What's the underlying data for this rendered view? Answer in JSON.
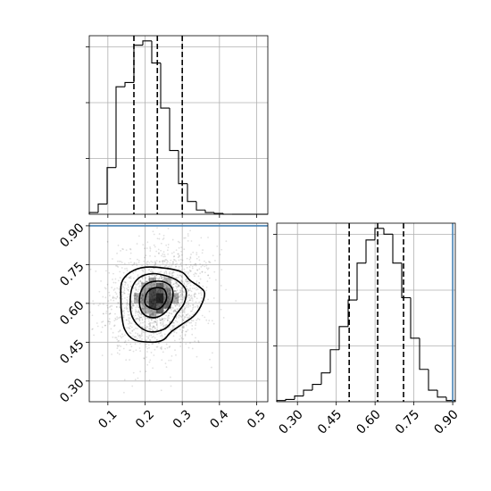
{
  "chart_data": [
    {
      "type": "histogram",
      "panel": "marginal-x",
      "xlim": [
        0.05,
        0.53
      ],
      "xticks": [
        "0.1",
        "0.2",
        "0.3",
        "0.4",
        "0.5"
      ],
      "xtick_values": [
        0.1,
        0.2,
        0.3,
        0.4,
        0.5
      ],
      "bin_edges": [
        0.05,
        0.074,
        0.098,
        0.122,
        0.146,
        0.17,
        0.194,
        0.218,
        0.242,
        0.266,
        0.29,
        0.314,
        0.338,
        0.362,
        0.386,
        0.41,
        0.434,
        0.458,
        0.482,
        0.506,
        0.53
      ],
      "counts": [
        2,
        12,
        55,
        150,
        155,
        199,
        204,
        178,
        125,
        75,
        36,
        15,
        5,
        2,
        1,
        0,
        0,
        0,
        0,
        0
      ],
      "quantiles": [
        0.17,
        0.233,
        0.3
      ],
      "truth": null
    },
    {
      "type": "histogram",
      "panel": "marginal-y",
      "xlim": [
        0.22,
        0.91
      ],
      "xticks": [
        "0.30",
        "0.45",
        "0.60",
        "0.75",
        "0.90"
      ],
      "xtick_values": [
        0.3,
        0.45,
        0.6,
        0.75,
        0.9
      ],
      "bin_edges": [
        0.22,
        0.2545,
        0.289,
        0.3235,
        0.358,
        0.3925,
        0.427,
        0.4615,
        0.496,
        0.5305,
        0.565,
        0.5995,
        0.634,
        0.6685,
        0.703,
        0.7375,
        0.772,
        0.8065,
        0.841,
        0.8755,
        0.91
      ],
      "counts": [
        1,
        2,
        5,
        10,
        15,
        25,
        45,
        65,
        88,
        120,
        140,
        150,
        145,
        120,
        90,
        55,
        28,
        10,
        4,
        1
      ],
      "quantiles": [
        0.5,
        0.61,
        0.71
      ],
      "truth": 0.9
    },
    {
      "type": "scatter",
      "panel": "joint",
      "xlim": [
        0.05,
        0.53
      ],
      "ylim": [
        0.22,
        0.91
      ],
      "xticks": [
        "0.1",
        "0.2",
        "0.3",
        "0.4",
        "0.5"
      ],
      "yticks": [
        "0.30",
        "0.45",
        "0.60",
        "0.75",
        "0.90"
      ],
      "ytick_values": [
        0.3,
        0.45,
        0.6,
        0.75,
        0.9
      ],
      "distribution": {
        "x_mean": 0.235,
        "x_sd": 0.065,
        "y_mean": 0.61,
        "y_sd": 0.1,
        "n_points": 1800
      },
      "contours": [
        [
          [
            0.135,
            0.61
          ],
          [
            0.137,
            0.68
          ],
          [
            0.16,
            0.72
          ],
          [
            0.2,
            0.74
          ],
          [
            0.26,
            0.735
          ],
          [
            0.3,
            0.72
          ],
          [
            0.32,
            0.69
          ],
          [
            0.345,
            0.665
          ],
          [
            0.36,
            0.64
          ],
          [
            0.35,
            0.59
          ],
          [
            0.33,
            0.55
          ],
          [
            0.3,
            0.52
          ],
          [
            0.27,
            0.49
          ],
          [
            0.25,
            0.46
          ],
          [
            0.22,
            0.45
          ],
          [
            0.17,
            0.46
          ],
          [
            0.145,
            0.5
          ],
          [
            0.137,
            0.56
          ]
        ],
        [
          [
            0.16,
            0.6
          ],
          [
            0.165,
            0.66
          ],
          [
            0.185,
            0.7
          ],
          [
            0.22,
            0.715
          ],
          [
            0.26,
            0.705
          ],
          [
            0.29,
            0.685
          ],
          [
            0.31,
            0.65
          ],
          [
            0.305,
            0.6
          ],
          [
            0.285,
            0.56
          ],
          [
            0.27,
            0.525
          ],
          [
            0.25,
            0.5
          ],
          [
            0.215,
            0.49
          ],
          [
            0.185,
            0.51
          ],
          [
            0.165,
            0.55
          ]
        ],
        [
          [
            0.185,
            0.6
          ],
          [
            0.19,
            0.65
          ],
          [
            0.21,
            0.68
          ],
          [
            0.245,
            0.685
          ],
          [
            0.27,
            0.665
          ],
          [
            0.275,
            0.63
          ],
          [
            0.265,
            0.585
          ],
          [
            0.245,
            0.555
          ],
          [
            0.22,
            0.545
          ],
          [
            0.195,
            0.56
          ]
        ],
        [
          [
            0.2,
            0.6
          ],
          [
            0.205,
            0.64
          ],
          [
            0.225,
            0.66
          ],
          [
            0.25,
            0.655
          ],
          [
            0.258,
            0.625
          ],
          [
            0.25,
            0.595
          ],
          [
            0.235,
            0.578
          ],
          [
            0.215,
            0.582
          ]
        ]
      ],
      "density_cells": [
        [
          0.2,
          0.58,
          0.3
        ],
        [
          0.2,
          0.62,
          0.45
        ],
        [
          0.22,
          0.6,
          0.75
        ],
        [
          0.22,
          0.64,
          0.7
        ],
        [
          0.24,
          0.62,
          0.85
        ],
        [
          0.24,
          0.66,
          0.6
        ],
        [
          0.26,
          0.6,
          0.55
        ],
        [
          0.24,
          0.58,
          0.6
        ],
        [
          0.2,
          0.66,
          0.35
        ],
        [
          0.18,
          0.62,
          0.3
        ],
        [
          0.26,
          0.64,
          0.5
        ],
        [
          0.22,
          0.56,
          0.35
        ],
        [
          0.22,
          0.68,
          0.35
        ],
        [
          0.26,
          0.68,
          0.3
        ],
        [
          0.28,
          0.62,
          0.3
        ]
      ]
    }
  ]
}
